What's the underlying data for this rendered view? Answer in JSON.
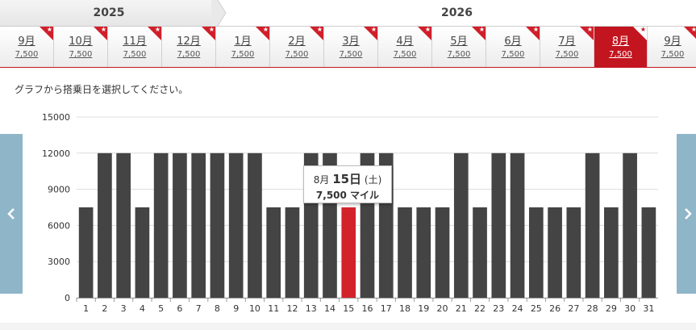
{
  "years": [
    {
      "label": "2025"
    },
    {
      "label": "2026"
    }
  ],
  "months": [
    {
      "label": "9月",
      "price": "7,500",
      "selected": false
    },
    {
      "label": "10月",
      "price": "7,500",
      "selected": false
    },
    {
      "label": "11月",
      "price": "7,500",
      "selected": false
    },
    {
      "label": "12月",
      "price": "7,500",
      "selected": false
    },
    {
      "label": "1月",
      "price": "7,500",
      "selected": false
    },
    {
      "label": "2月",
      "price": "7,500",
      "selected": false
    },
    {
      "label": "3月",
      "price": "7,500",
      "selected": false
    },
    {
      "label": "4月",
      "price": "7,500",
      "selected": false
    },
    {
      "label": "5月",
      "price": "7,500",
      "selected": false
    },
    {
      "label": "6月",
      "price": "7,500",
      "selected": false
    },
    {
      "label": "7月",
      "price": "7,500",
      "selected": false
    },
    {
      "label": "8月",
      "price": "7,500",
      "selected": true
    },
    {
      "label": "9月",
      "price": "7,500",
      "selected": false
    }
  ],
  "corner_star": "★",
  "instruction": "グラフから搭乗日を選択してください。",
  "nav": {
    "prev_icon": "chevron-left-icon",
    "next_icon": "chevron-right-icon"
  },
  "colors": {
    "accent": "#c3151f",
    "bar": "#444444",
    "bar_selected": "#d2232a",
    "nav": "#8fb5c8"
  },
  "tooltip": {
    "month": "8月",
    "day": "15日",
    "weekday": "(土)",
    "miles": "7,500 マイル"
  },
  "chart_data": {
    "type": "bar",
    "categories": [
      "1",
      "2",
      "3",
      "4",
      "5",
      "6",
      "7",
      "8",
      "9",
      "10",
      "11",
      "12",
      "13",
      "14",
      "15",
      "16",
      "17",
      "18",
      "19",
      "20",
      "21",
      "22",
      "23",
      "24",
      "25",
      "26",
      "27",
      "28",
      "29",
      "30",
      "31"
    ],
    "values": [
      7500,
      12000,
      12000,
      7500,
      12000,
      12000,
      12000,
      12000,
      12000,
      12000,
      7500,
      7500,
      12000,
      12000,
      7500,
      12000,
      12000,
      7500,
      7500,
      7500,
      12000,
      7500,
      12000,
      12000,
      7500,
      7500,
      7500,
      12000,
      7500,
      12000,
      7500
    ],
    "selected_index": 14,
    "ylim": [
      0,
      15000
    ],
    "yticks": [
      "0",
      "3000",
      "6000",
      "9000",
      "12000",
      "15000"
    ],
    "grid": true,
    "title": "",
    "xlabel": "",
    "ylabel": ""
  }
}
